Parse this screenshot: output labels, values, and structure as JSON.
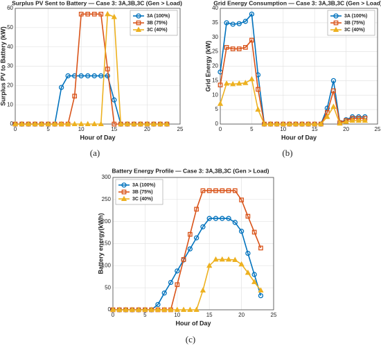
{
  "chart_data": [
    {
      "type": "line",
      "caption": "(a)",
      "title": "Surplus PV Sent to Battery — Case 3: 3A,3B,3C (Gen > Load)",
      "xlabel": "Hour of Day",
      "ylabel": "Surplus PV to Battery (kW)",
      "x": [
        0,
        1,
        2,
        3,
        4,
        5,
        6,
        7,
        8,
        9,
        10,
        11,
        12,
        13,
        14,
        15,
        16,
        17,
        18,
        19,
        20,
        21,
        22,
        23
      ],
      "xlim": [
        0,
        25
      ],
      "xticks": [
        0,
        5,
        10,
        15,
        20,
        25
      ],
      "ylim": [
        0,
        60
      ],
      "yticks": [
        0,
        10,
        20,
        30,
        40,
        50,
        60
      ],
      "grid": true,
      "legend": "top-right",
      "series": [
        {
          "name": "3A (100%)",
          "color": "#0072bd",
          "marker": "circle",
          "values": [
            0,
            0,
            0,
            0,
            0,
            0,
            0,
            19,
            25,
            25,
            25,
            25,
            25,
            25,
            25,
            12.5,
            0,
            0,
            0,
            0,
            0,
            0,
            0,
            0
          ]
        },
        {
          "name": "3B (75%)",
          "color": "#d95319",
          "marker": "square",
          "values": [
            0,
            0,
            0,
            0,
            0,
            0,
            0,
            0,
            0,
            14.5,
            57,
            57,
            57,
            57,
            28.5,
            0,
            0,
            0,
            0,
            0,
            0,
            0,
            0,
            0
          ]
        },
        {
          "name": "3C (40%)",
          "color": "#edb120",
          "marker": "triangle",
          "values": [
            0,
            0,
            0,
            0,
            0,
            0,
            0,
            0,
            0,
            0,
            0,
            0,
            0,
            0,
            57,
            55.5,
            0,
            0,
            0,
            0,
            0,
            0,
            0,
            0
          ]
        }
      ]
    },
    {
      "type": "line",
      "caption": "(b)",
      "title": "Grid Energy Consumption — Case 3: 3A,3B,3C (Gen > Load)",
      "xlabel": "Hour of Day",
      "ylabel": "Grid Energy (kW)",
      "x": [
        0,
        1,
        2,
        3,
        4,
        5,
        6,
        7,
        8,
        9,
        10,
        11,
        12,
        13,
        14,
        15,
        16,
        17,
        18,
        19,
        20,
        21,
        22,
        23
      ],
      "xlim": [
        0,
        25
      ],
      "xticks": [
        0,
        5,
        10,
        15,
        20,
        25
      ],
      "ylim": [
        0,
        40
      ],
      "yticks": [
        0,
        5,
        10,
        15,
        20,
        25,
        30,
        35,
        40
      ],
      "grid": true,
      "legend": "top-right",
      "series": [
        {
          "name": "3A (100%)",
          "color": "#0072bd",
          "marker": "circle",
          "values": [
            18,
            35,
            34.5,
            34.7,
            35.5,
            38,
            17,
            0,
            0,
            0,
            0,
            0,
            0,
            0,
            0,
            0,
            0,
            5.5,
            15,
            0.5,
            1.5,
            2.5,
            2.5,
            2.5
          ]
        },
        {
          "name": "3B (75%)",
          "color": "#d95319",
          "marker": "square",
          "values": [
            13.5,
            26.5,
            26,
            26,
            26.5,
            29,
            12,
            0,
            0,
            0,
            0,
            0,
            0,
            0,
            0,
            0,
            0,
            4,
            11.5,
            0.5,
            1.2,
            2,
            2,
            2
          ]
        },
        {
          "name": "3C (40%)",
          "color": "#edb120",
          "marker": "triangle",
          "values": [
            7,
            14,
            13.8,
            14,
            14.2,
            15.5,
            5,
            0,
            0,
            0,
            0,
            0,
            0,
            0,
            0,
            0,
            0,
            2.5,
            6,
            0.2,
            0.8,
            1.2,
            1.2,
            1.2
          ]
        }
      ]
    },
    {
      "type": "line",
      "caption": "(c)",
      "title": "Battery Energy Profile — Case 3: 3A,3B,3C  (Gen > Load)",
      "xlabel": "Hour of Day",
      "ylabel": "Battery energy(kWh)",
      "x": [
        0,
        1,
        2,
        3,
        4,
        5,
        6,
        7,
        8,
        9,
        10,
        11,
        12,
        13,
        14,
        15,
        16,
        17,
        18,
        19,
        20,
        21,
        22,
        23
      ],
      "xlim": [
        0,
        25
      ],
      "xticks": [
        0,
        5,
        10,
        15,
        20,
        25
      ],
      "ylim": [
        0,
        300
      ],
      "yticks": [
        0,
        50,
        100,
        150,
        200,
        250,
        300
      ],
      "grid": true,
      "legend": "top-left",
      "series": [
        {
          "name": "3A (100%)",
          "color": "#0072bd",
          "marker": "circle",
          "values": [
            0,
            0,
            0,
            0,
            0,
            0,
            0,
            12,
            38,
            62,
            88,
            113,
            138,
            163,
            188,
            207,
            207,
            207,
            207,
            198,
            178,
            128,
            80,
            32
          ]
        },
        {
          "name": "3B (75%)",
          "color": "#d95319",
          "marker": "square",
          "values": [
            0,
            0,
            0,
            0,
            0,
            0,
            0,
            0,
            0,
            0,
            57,
            114,
            171,
            228,
            270,
            270,
            270,
            270,
            270,
            270,
            249,
            212,
            176,
            140
          ]
        },
        {
          "name": "3C (40%)",
          "color": "#edb120",
          "marker": "triangle",
          "values": [
            0,
            0,
            0,
            0,
            0,
            0,
            0,
            0,
            0,
            0,
            0,
            0,
            0,
            0,
            44,
            100,
            114,
            114,
            114,
            113,
            103,
            84,
            63,
            44
          ]
        }
      ]
    }
  ]
}
